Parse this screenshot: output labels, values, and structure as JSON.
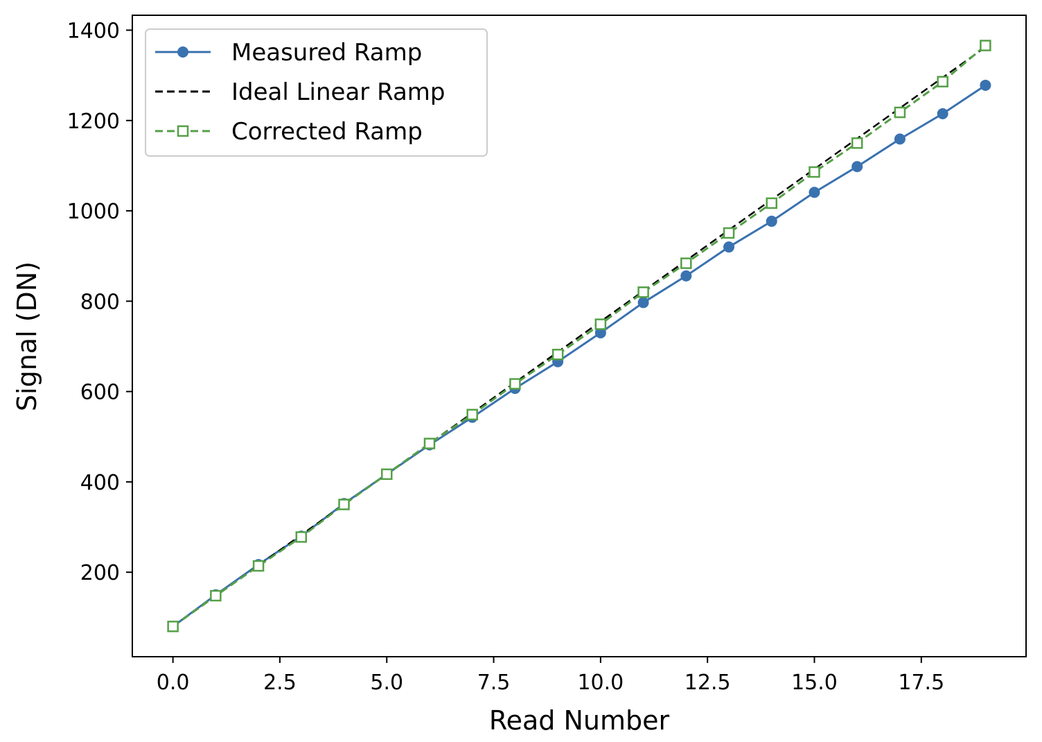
{
  "chart_data": {
    "type": "line",
    "title": "",
    "xlabel": "Read Number",
    "ylabel": "Signal (DN)",
    "xlim": [
      -0.95,
      19.95
    ],
    "ylim": [
      13,
      1433
    ],
    "xticks": [
      0.0,
      2.5,
      5.0,
      7.5,
      10.0,
      12.5,
      15.0,
      17.5
    ],
    "xtick_labels": [
      "0.0",
      "2.5",
      "5.0",
      "7.5",
      "10.0",
      "12.5",
      "15.0",
      "17.5"
    ],
    "yticks": [
      200,
      400,
      600,
      800,
      1000,
      1200,
      1400
    ],
    "ytick_labels": [
      "200",
      "400",
      "600",
      "800",
      "1000",
      "1200",
      "1400"
    ],
    "grid": false,
    "legend_position": "top-left",
    "x": [
      0,
      1,
      2,
      3,
      4,
      5,
      6,
      7,
      8,
      9,
      10,
      11,
      12,
      13,
      14,
      15,
      16,
      17,
      18,
      19
    ],
    "series": [
      {
        "name": "Measured Ramp",
        "color": "#3a72b0",
        "style": "solid",
        "marker": "circle",
        "values": [
          80,
          150,
          217,
          280,
          352,
          417,
          482,
          543,
          607,
          666,
          730,
          797,
          856,
          920,
          977,
          1041,
          1098,
          1159,
          1215,
          1278
        ]
      },
      {
        "name": "Ideal Linear Ramp",
        "color": "#000000",
        "style": "dashed",
        "marker": "none",
        "values": [
          80,
          147.5,
          215,
          282.5,
          350,
          417.5,
          485,
          552.5,
          620,
          687.5,
          755,
          822.5,
          890,
          957.5,
          1025,
          1092.5,
          1160,
          1227.5,
          1295,
          1362.5
        ]
      },
      {
        "name": "Corrected Ramp",
        "color": "#55a047",
        "style": "dashed",
        "marker": "square-open",
        "values": [
          80,
          148,
          214,
          278,
          350,
          417,
          485,
          549,
          617,
          682,
          749,
          820,
          884,
          951,
          1017,
          1086,
          1150,
          1218,
          1286,
          1366
        ]
      }
    ]
  }
}
